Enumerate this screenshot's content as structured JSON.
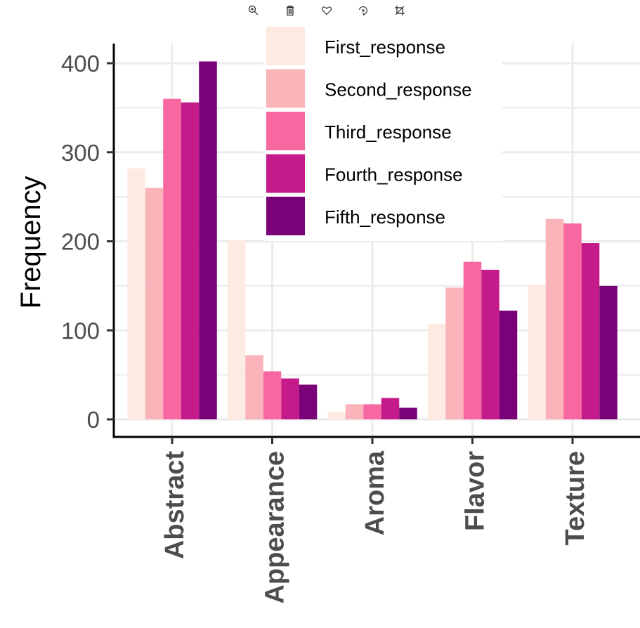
{
  "toolbar": {
    "icons": [
      "zoom-in-icon",
      "trash-icon",
      "heart-icon",
      "rotate-icon",
      "crop-icon"
    ]
  },
  "chart_data": {
    "type": "bar",
    "title": "",
    "xlabel": "",
    "ylabel": "Frequency",
    "ylim": [
      -20,
      420
    ],
    "yticks": [
      0,
      100,
      200,
      300,
      400
    ],
    "ytick_labels": [
      "0",
      "100",
      "200",
      "300",
      "400"
    ],
    "grid": true,
    "legend_position": "top-center-inside",
    "categories": [
      "Abstract",
      "Appearance",
      "Aroma",
      "Flavor",
      "Texture"
    ],
    "series": [
      {
        "name": "First_response",
        "color": "#FDEBE2",
        "values": [
          282,
          201,
          8,
          107,
          151
        ]
      },
      {
        "name": "Second_response",
        "color": "#FAB3B8",
        "values": [
          260,
          72,
          17,
          148,
          225
        ]
      },
      {
        "name": "Third_response",
        "color": "#F768A1",
        "values": [
          360,
          54,
          17,
          177,
          220
        ]
      },
      {
        "name": "Fourth_response",
        "color": "#C51B8A",
        "values": [
          356,
          46,
          24,
          168,
          198
        ]
      },
      {
        "name": "Fifth_response",
        "color": "#7A0177",
        "values": [
          402,
          39,
          13,
          122,
          150
        ]
      }
    ]
  }
}
